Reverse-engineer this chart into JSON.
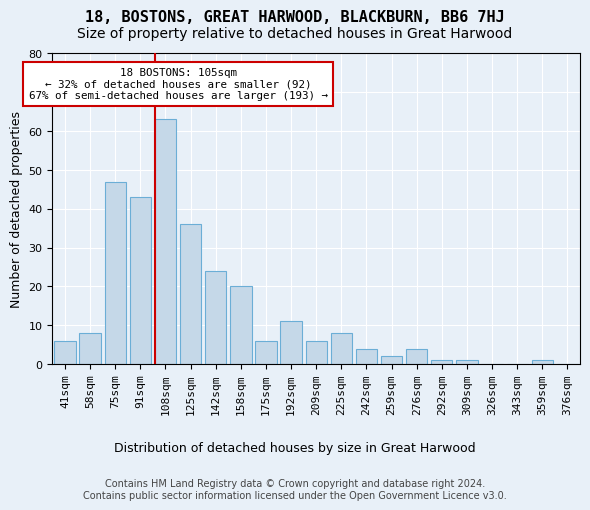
{
  "title": "18, BOSTONS, GREAT HARWOOD, BLACKBURN, BB6 7HJ",
  "subtitle": "Size of property relative to detached houses in Great Harwood",
  "xlabel": "Distribution of detached houses by size in Great Harwood",
  "ylabel": "Number of detached properties",
  "categories": [
    "41sqm",
    "58sqm",
    "75sqm",
    "91sqm",
    "108sqm",
    "125sqm",
    "142sqm",
    "158sqm",
    "175sqm",
    "192sqm",
    "209sqm",
    "225sqm",
    "242sqm",
    "259sqm",
    "276sqm",
    "292sqm",
    "309sqm",
    "326sqm",
    "343sqm",
    "359sqm",
    "376sqm"
  ],
  "values": [
    6,
    8,
    47,
    43,
    63,
    36,
    24,
    20,
    6,
    11,
    6,
    8,
    4,
    2,
    4,
    1,
    1,
    0,
    0,
    1,
    0
  ],
  "bar_color": "#c5d8e8",
  "bar_edge_color": "#6baed6",
  "background_color": "#e8f0f8",
  "grid_color": "#ffffff",
  "annotation_box_text": "18 BOSTONS: 105sqm\n← 32% of detached houses are smaller (92)\n67% of semi-detached houses are larger (193) →",
  "annotation_box_color": "#ffffff",
  "annotation_box_edge_color": "#cc0000",
  "property_line_x": 3.575,
  "property_line_color": "#cc0000",
  "ylim": [
    0,
    80
  ],
  "yticks": [
    0,
    10,
    20,
    30,
    40,
    50,
    60,
    70,
    80
  ],
  "footer": "Contains HM Land Registry data © Crown copyright and database right 2024.\nContains public sector information licensed under the Open Government Licence v3.0.",
  "title_fontsize": 11,
  "subtitle_fontsize": 10,
  "xlabel_fontsize": 9,
  "ylabel_fontsize": 9,
  "tick_fontsize": 8,
  "footer_fontsize": 7
}
